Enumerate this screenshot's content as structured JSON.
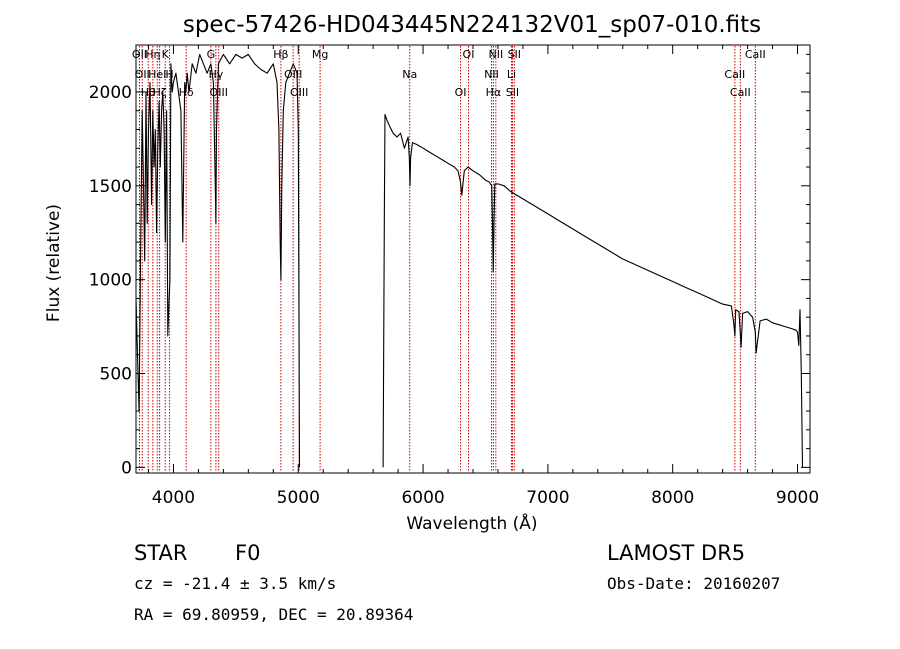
{
  "chart_data": {
    "type": "line",
    "title": "spec-57426-HD043445N224132V01_sp07-010.fits",
    "xlabel": "Wavelength (Å)",
    "ylabel": "Flux (relative)",
    "xlim": [
      3700,
      9100
    ],
    "ylim": [
      -30,
      2250
    ],
    "x_ticks": [
      4000,
      5000,
      6000,
      7000,
      8000,
      9000
    ],
    "y_ticks": [
      0,
      500,
      1000,
      1500,
      2000
    ],
    "series": [
      {
        "segments": [
          {
            "x": [
              3700,
              3712,
              3725,
              3738,
              3750,
              3760,
              3770,
              3780,
              3790,
              3800,
              3812,
              3825,
              3835,
              3845,
              3855,
              3865,
              3875,
              3885,
              3895,
              3905,
              3915,
              3925,
              3935,
              3945,
              3955,
              3965,
              3972,
              3980,
              3990,
              4000,
              4020,
              4040,
              4060,
              4075,
              4090,
              4100,
              4110,
              4125,
              4150,
              4180,
              4210,
              4240,
              4270,
              4300,
              4320,
              4335,
              4340,
              4345,
              4360,
              4400,
              4450,
              4500,
              4550,
              4600,
              4650,
              4700,
              4750,
              4800,
              4830,
              4845,
              4855,
              4861,
              4868,
              4880,
              4900,
              4930,
              4960,
              4990,
              5000,
              5010
            ],
            "y": [
              900,
              600,
              300,
              1200,
              1900,
              1500,
              1100,
              2000,
              1300,
              1800,
              2050,
              1400,
              1900,
              1600,
              1800,
              1250,
              1700,
              1950,
              1600,
              1900,
              2000,
              1800,
              1200,
              1900,
              700,
              900,
              1000,
              2150,
              2000,
              2050,
              2100,
              2000,
              1900,
              1200,
              2050,
              2000,
              2100,
              2000,
              2150,
              2100,
              2200,
              2150,
              2100,
              2150,
              2050,
              1500,
              1300,
              1800,
              2150,
              2200,
              2150,
              2200,
              2180,
              2200,
              2150,
              2120,
              2100,
              2150,
              2050,
              1800,
              1200,
              1000,
              1500,
              1900,
              2050,
              2100,
              2150,
              2100,
              1800,
              0
            ]
          },
          {
            "x": [
              5680,
              5690,
              5695,
              5710,
              5730,
              5760,
              5790,
              5820,
              5850,
              5880,
              5890,
              5895,
              5900,
              5915,
              5950,
              6000,
              6050,
              6100,
              6150,
              6200,
              6250,
              6280,
              6300,
              6310,
              6330,
              6360,
              6400,
              6450,
              6500,
              6530,
              6550,
              6556,
              6562,
              6568,
              6575,
              6600,
              6650,
              6700,
              6800,
              6900,
              7000,
              7100,
              7200,
              7300,
              7400,
              7500,
              7600,
              7700,
              7800,
              7900,
              8000,
              8100,
              8200,
              8300,
              8400,
              8470,
              8490,
              8498,
              8505,
              8530,
              8542,
              8548,
              8560,
              8600,
              8640,
              8662,
              8668,
              8700,
              8750,
              8800,
              8850,
              8900,
              8950,
              8990,
              9000,
              9010,
              9020,
              9030,
              9040
            ],
            "y": [
              0,
              1400,
              1880,
              1850,
              1820,
              1780,
              1760,
              1780,
              1700,
              1760,
              1650,
              1500,
              1650,
              1730,
              1720,
              1700,
              1680,
              1660,
              1640,
              1620,
              1600,
              1580,
              1520,
              1450,
              1580,
              1600,
              1580,
              1560,
              1530,
              1520,
              1500,
              1300,
              1040,
              1300,
              1510,
              1510,
              1500,
              1470,
              1430,
              1390,
              1350,
              1310,
              1270,
              1230,
              1190,
              1150,
              1110,
              1080,
              1050,
              1020,
              990,
              960,
              930,
              900,
              870,
              860,
              760,
              700,
              840,
              830,
              710,
              640,
              820,
              830,
              800,
              720,
              610,
              780,
              790,
              770,
              760,
              750,
              740,
              730,
              720,
              650,
              840,
              500,
              0
            ]
          }
        ]
      }
    ],
    "spectral_lines": [
      {
        "wl": 3728,
        "label": "OII"
      },
      {
        "wl": 3750,
        "label": "OII"
      },
      {
        "wl": 3798,
        "label": "Hθ"
      },
      {
        "wl": 3835,
        "label": "Hη"
      },
      {
        "wl": 3870,
        "label": "HeI"
      },
      {
        "wl": 3889,
        "label": "Hζ"
      },
      {
        "wl": 3934,
        "label": "K"
      },
      {
        "wl": 3969,
        "label": "H"
      },
      {
        "wl": 4102,
        "label": "Hδ"
      },
      {
        "wl": 4300,
        "label": "G"
      },
      {
        "wl": 4340,
        "label": "Hγ"
      },
      {
        "wl": 4363,
        "label": "OIII"
      },
      {
        "wl": 4861,
        "label": "Hβ"
      },
      {
        "wl": 4959,
        "label": "OIII"
      },
      {
        "wl": 5007,
        "label": "OIII"
      },
      {
        "wl": 5175,
        "label": "Mg"
      },
      {
        "wl": 5893,
        "label": "Na"
      },
      {
        "wl": 6300,
        "label": "OI"
      },
      {
        "wl": 6364,
        "label": "OI"
      },
      {
        "wl": 6548,
        "label": "NII"
      },
      {
        "wl": 6563,
        "label": "Hα"
      },
      {
        "wl": 6583,
        "label": "NII"
      },
      {
        "wl": 6708,
        "label": "Li"
      },
      {
        "wl": 6716,
        "label": "SII"
      },
      {
        "wl": 6731,
        "label": "SII"
      },
      {
        "wl": 8498,
        "label": "CaII"
      },
      {
        "wl": 8542,
        "label": "CaII"
      },
      {
        "wl": 8662,
        "label": "CaII"
      }
    ],
    "line_color": "#000000",
    "marker_color": "#cc0000",
    "grid": false,
    "legend": "none"
  },
  "info": {
    "class_label": "STAR",
    "subclass": "F0",
    "survey": "LAMOST DR5",
    "cz": "cz = -21.4 ± 3.5 km/s",
    "obs_date": "Obs-Date: 20160207",
    "coords": "RA =  69.80959, DEC =  20.89364"
  }
}
